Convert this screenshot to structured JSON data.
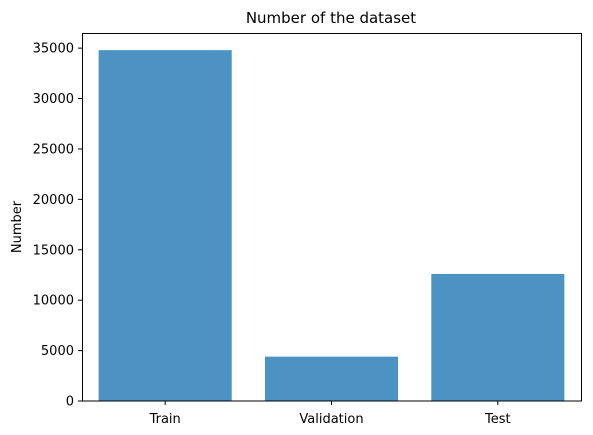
{
  "chart_data": {
    "type": "bar",
    "title": "Number of the dataset",
    "xlabel": "",
    "ylabel": "Number",
    "categories": [
      "Train",
      "Validation",
      "Test"
    ],
    "values": [
      34800,
      4400,
      12600
    ],
    "ylim": [
      0,
      36500
    ],
    "yticks": [
      0,
      5000,
      10000,
      15000,
      20000,
      25000,
      30000,
      35000
    ],
    "ytick_labels": [
      "0",
      "5000",
      "10000",
      "15000",
      "20000",
      "25000",
      "30000",
      "35000"
    ],
    "grid": false,
    "bar_color": "#4c92c3"
  }
}
